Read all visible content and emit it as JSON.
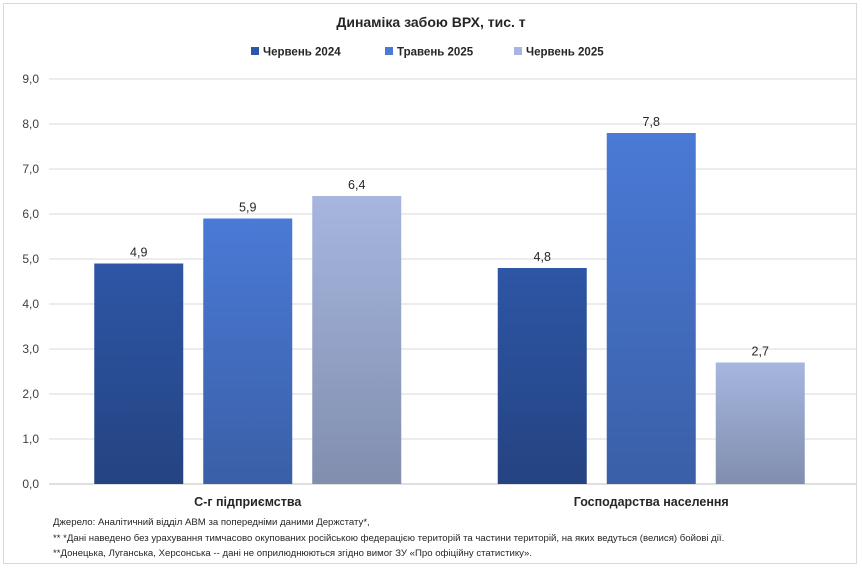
{
  "chart_data": {
    "type": "bar",
    "title": "Динаміка забою ВРХ, тис. т",
    "categories": [
      "С-г підприємства",
      "Господарства населення"
    ],
    "series": [
      {
        "name": "Червень 2024",
        "values": [
          4.9,
          4.8
        ],
        "color": "#2e56a6"
      },
      {
        "name": "Травень 2025",
        "values": [
          5.9,
          7.8
        ],
        "color": "#4a7ad6"
      },
      {
        "name": "Червень 2025",
        "values": [
          6.4,
          2.7
        ],
        "color": "#a6b6df"
      }
    ],
    "ylim": [
      0,
      9
    ],
    "ytick_labels": [
      "0,0",
      "1,0",
      "2,0",
      "3,0",
      "4,0",
      "5,0",
      "6,0",
      "7,0",
      "8,0",
      "9,0"
    ],
    "data_labels": [
      [
        "4,9",
        "4,8"
      ],
      [
        "5,9",
        "7,8"
      ],
      [
        "6,4",
        "2,7"
      ]
    ],
    "grid": true,
    "legend_position": "top"
  },
  "notes": [
    "Джерело:  Аналітичний відділ АВМ за попередніми даними Держстату*,",
    "** *Дані наведено  без урахування тимчасово окупованих російською федерацією територій та частини територій, на яких ведуться  (велися) бойові дії.",
    "**Донецька,  Луганська, Херсонська -- дані не оприлюднюються  згідно вимог ЗУ «Про офіційну статистику»."
  ]
}
